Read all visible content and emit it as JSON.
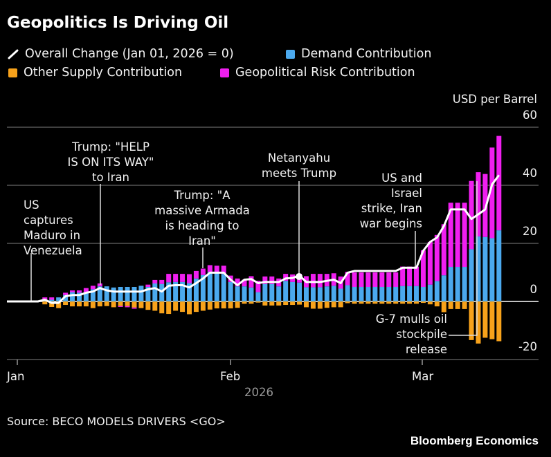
{
  "title": "Geopolitics Is Driving Oil",
  "source": "Source: BECO MODELS DRIVERS <GO>",
  "brand": "Bloomberg Economics",
  "colors": {
    "overall": "#ffffff",
    "demand": "#4ba9ee",
    "supply": "#f7a21b",
    "geopolitical": "#f01ff0",
    "grid": "#555555"
  },
  "legend": [
    {
      "label": "Overall Change (Jan 01, 2026 = 0)",
      "icon": "line-icon"
    },
    {
      "label": "Demand Contribution",
      "icon": "square-icon"
    },
    {
      "label": "Other Supply Contribution",
      "icon": "square-icon"
    },
    {
      "label": "Geopolitical Risk Contribution",
      "icon": "square-icon"
    }
  ],
  "annotations": [
    {
      "lines": [
        "US",
        "captures",
        "Maduro in",
        "Venezuela"
      ],
      "date": "2026-01-03"
    },
    {
      "lines": [
        "Trump: \"HELP",
        "IS ON ITS WAY\"",
        "to Iran"
      ],
      "date": "2026-01-13"
    },
    {
      "lines": [
        "Trump: \"A",
        "massive Armada",
        "is heading to",
        "Iran\""
      ],
      "date": "2026-01-28"
    },
    {
      "lines": [
        "Netanyahu",
        "meets Trump"
      ],
      "date": "2026-02-11"
    },
    {
      "lines": [
        "US and",
        "Israel",
        "strike, Iran",
        "war begins"
      ],
      "date": "2026-02-28"
    },
    {
      "lines": [
        "G-7 mulls oil",
        "stockpile",
        "release"
      ],
      "date": "2026-03-09"
    }
  ],
  "chart_data": {
    "type": "bar",
    "stacked": true,
    "title": "Geopolitics Is Driving Oil",
    "ylabel": "USD per Barrel",
    "ylim": [
      -20,
      60
    ],
    "yticks": [
      "60",
      "40",
      "20",
      "0",
      "-20"
    ],
    "xticks": [
      "Jan",
      "Feb",
      "Mar"
    ],
    "xlabel": "2026",
    "grid": true,
    "legend_position": "top-left",
    "x": [
      "2026-01-01",
      "2026-01-02",
      "2026-01-03",
      "2026-01-04",
      "2026-01-05",
      "2026-01-06",
      "2026-01-07",
      "2026-01-08",
      "2026-01-09",
      "2026-01-10",
      "2026-01-11",
      "2026-01-12",
      "2026-01-13",
      "2026-01-14",
      "2026-01-15",
      "2026-01-16",
      "2026-01-17",
      "2026-01-18",
      "2026-01-19",
      "2026-01-20",
      "2026-01-21",
      "2026-01-22",
      "2026-01-23",
      "2026-01-24",
      "2026-01-25",
      "2026-01-26",
      "2026-01-27",
      "2026-01-28",
      "2026-01-29",
      "2026-01-30",
      "2026-01-31",
      "2026-02-01",
      "2026-02-02",
      "2026-02-03",
      "2026-02-04",
      "2026-02-05",
      "2026-02-06",
      "2026-02-07",
      "2026-02-08",
      "2026-02-09",
      "2026-02-10",
      "2026-02-11",
      "2026-02-12",
      "2026-02-13",
      "2026-02-14",
      "2026-02-15",
      "2026-02-16",
      "2026-02-17",
      "2026-02-18",
      "2026-02-19",
      "2026-02-20",
      "2026-02-21",
      "2026-02-22",
      "2026-02-23",
      "2026-02-24",
      "2026-02-25",
      "2026-02-26",
      "2026-02-27",
      "2026-02-28",
      "2026-03-01",
      "2026-03-02",
      "2026-03-03",
      "2026-03-04",
      "2026-03-05",
      "2026-03-06",
      "2026-03-07",
      "2026-03-08",
      "2026-03-09",
      "2026-03-10",
      "2026-03-11",
      "2026-03-12"
    ],
    "series": [
      {
        "name": "Demand Contribution",
        "kind": "bar",
        "values": [
          0.2,
          0.2,
          0.2,
          0.2,
          0.6,
          0.6,
          1.4,
          2.2,
          3.2,
          3.0,
          3.2,
          4.2,
          5.2,
          5.2,
          4.8,
          5.0,
          5.0,
          5.0,
          5.4,
          5.0,
          6.2,
          6.0,
          6.6,
          6.7,
          6.7,
          6.3,
          7.9,
          9.1,
          10.2,
          10.2,
          9.5,
          6.7,
          5.2,
          5.2,
          4.8,
          3.2,
          6.0,
          6.0,
          5.2,
          7.1,
          6.7,
          6.5,
          4.9,
          4.9,
          4.9,
          5.2,
          5.4,
          4.4,
          5.6,
          5,
          5,
          5,
          5,
          5,
          5,
          5,
          5.3,
          5.3,
          5.3,
          5.0,
          5.8,
          7.0,
          9.0,
          11.9,
          11.9,
          11.9,
          18.0,
          22.4,
          22.2,
          21.8,
          24.5
        ]
      },
      {
        "name": "Geopolitical Risk Contribution",
        "kind": "bar",
        "values": [
          0,
          0,
          0,
          0,
          0.8,
          0.8,
          0,
          0.8,
          0.6,
          0.8,
          1.4,
          1.2,
          1.0,
          0,
          0,
          -0.3,
          -0.4,
          -0.4,
          0,
          0.8,
          1.2,
          1.4,
          2.9,
          2.8,
          2.8,
          3.1,
          2.6,
          2.2,
          2.3,
          2.1,
          2.8,
          2.2,
          2.7,
          2.3,
          3.9,
          3.9,
          2.6,
          2.6,
          2.7,
          2.4,
          2.6,
          3.0,
          3.8,
          4.6,
          4.6,
          4.3,
          4.3,
          4.2,
          4.6,
          5,
          5,
          5,
          5,
          5,
          5,
          5,
          6.7,
          6.7,
          6.7,
          12.6,
          14.7,
          15.9,
          17.6,
          22.1,
          22.1,
          22.1,
          23.5,
          22.1,
          21.7,
          31.2,
          32.5
        ]
      },
      {
        "name": "Other Supply Contribution",
        "kind": "bar",
        "values": [
          0,
          0,
          0,
          0,
          -1,
          -1.9,
          -2.3,
          -1.2,
          -1.7,
          -1.7,
          -1.7,
          -2.3,
          -1.7,
          -1.6,
          -2,
          -1.6,
          -1.6,
          -2.1,
          -2.3,
          -2.9,
          -3.2,
          -4.1,
          -4.3,
          -3.2,
          -3.6,
          -4.4,
          -3.6,
          -3.2,
          -2.8,
          -2.4,
          -2.4,
          -2.4,
          -2.2,
          -0.8,
          -0.8,
          -0.4,
          -1.4,
          -1.4,
          -1.4,
          -1.2,
          -1.2,
          -1.1,
          -2,
          -2.5,
          -2.5,
          -2.2,
          -2,
          -2,
          -0.6,
          -0.8,
          -0.8,
          -0.8,
          -0.8,
          -0.8,
          -0.8,
          -0.8,
          -0.8,
          -0.8,
          -0.8,
          -0.5,
          -1,
          -1.7,
          -3.7,
          -2.6,
          -2.6,
          -2.6,
          -13.3,
          -14.5,
          -12.5,
          -13,
          -13.7
        ]
      },
      {
        "name": "Overall Change (Jan 01, 2026 = 0)",
        "kind": "line",
        "values": [
          0,
          0,
          0,
          0,
          0.6,
          -0.5,
          -0.5,
          1.8,
          2.2,
          2.2,
          3,
          3.4,
          4.6,
          3.8,
          3.4,
          3.4,
          3.4,
          3.4,
          3.4,
          4.2,
          4.6,
          3.4,
          5.4,
          5.6,
          5.6,
          4.8,
          6.3,
          7.9,
          9.9,
          9.9,
          9.9,
          7.5,
          5.6,
          7.5,
          7.7,
          6.3,
          6.7,
          6.7,
          6.7,
          7.9,
          8.1,
          8.9,
          6.7,
          6.7,
          6.7,
          7.1,
          7.5,
          6.3,
          9.9,
          10.5,
          10.5,
          10.5,
          10.5,
          10.5,
          10.5,
          10.5,
          11.6,
          11.6,
          11.6,
          17.5,
          20.5,
          22,
          26,
          31.7,
          31.7,
          31.7,
          28.4,
          30,
          31.7,
          40.3,
          43.5
        ]
      }
    ]
  }
}
